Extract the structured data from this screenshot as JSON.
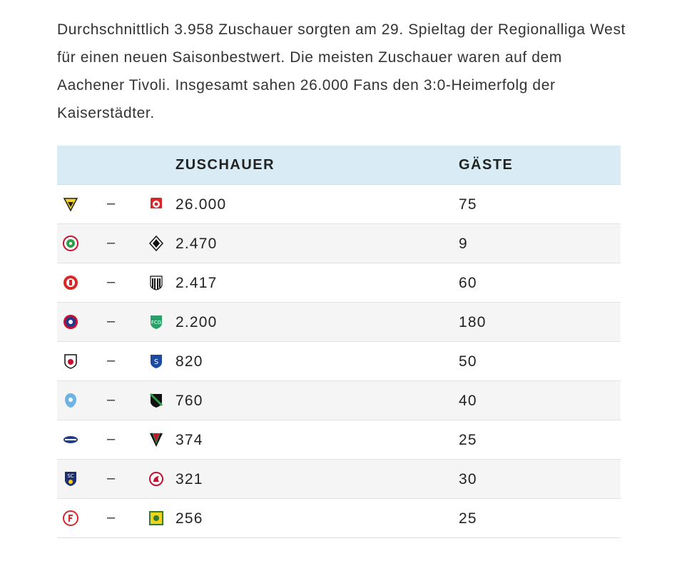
{
  "intro": "Durchschnittlich 3.958 Zuschauer sorgten am 29. Spieltag der Regionalliga West für einen neuen Saisonbestwert. Die meisten Zuschauer waren auf dem Aachener Tivoli. Insgesamt sahen 26.000 Fans den 3:0-Heimerfolg der Kaiserstädter.",
  "table": {
    "headers": {
      "attendance": "ZUSCHAUER",
      "guests": "GÄSTE"
    },
    "separator": "–",
    "rows": [
      {
        "home_logo": "alemannia-aachen-crest",
        "away_logo": "ahlen-crest",
        "attendance": "26.000",
        "guests": "75"
      },
      {
        "home_logo": "rot-weiss-oberhausen-crest",
        "away_logo": "gladbach-ii-crest",
        "attendance": "2.470",
        "guests": "9"
      },
      {
        "home_logo": "fortuna-koeln-crest",
        "away_logo": "wiedenbrueck-crest",
        "attendance": "2.417",
        "guests": "60"
      },
      {
        "home_logo": "wuppertal-crest",
        "away_logo": "guetersloh-crest",
        "attendance": "2.200",
        "guests": "180"
      },
      {
        "home_logo": "bocholt-crest",
        "away_logo": "schalke-ii-crest",
        "attendance": "820",
        "guests": "50"
      },
      {
        "home_logo": "duesseldorf-ii-crest",
        "away_logo": "rhynern-crest",
        "attendance": "760",
        "guests": "40"
      },
      {
        "home_logo": "paderborn-ii-crest",
        "away_logo": "bergisch-crest",
        "attendance": "374",
        "guests": "25"
      },
      {
        "home_logo": "wegberg-crest",
        "away_logo": "koeln-ii-crest",
        "attendance": "321",
        "guests": "30"
      },
      {
        "home_logo": "fortuna-duesseldorf-ii-crest",
        "away_logo": "lippstadt-crest",
        "attendance": "256",
        "guests": "25"
      }
    ]
  }
}
